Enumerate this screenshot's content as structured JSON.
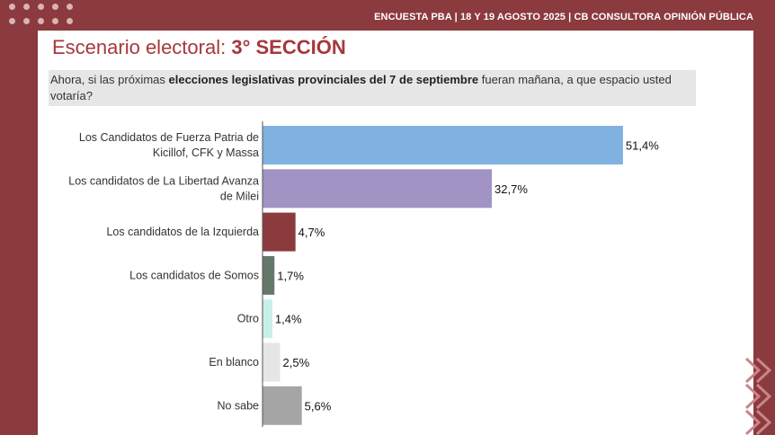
{
  "header": {
    "text": "ENCUESTA PBA | 18 Y 19  AGOSTO 2025 | CB CONSULTORA OPINIÓN PÚBLICA"
  },
  "title": {
    "prefix": "Escenario electoral: ",
    "highlight": "3° SECCIÓN"
  },
  "question": {
    "part1": "Ahora, si las próximas ",
    "bold": "elecciones legislativas provinciales del 7 de septiembre",
    "part2": " fueran mañana, a que espacio usted votaría?"
  },
  "chart_data": {
    "type": "bar",
    "orientation": "horizontal",
    "categories": [
      "Los Candidatos de Fuerza Patria de Kicillof, CFK y Massa",
      "Los candidatos de La Libertad Avanza de Milei",
      "Los candidatos de la Izquierda",
      "Los candidatos de Somos",
      "Otro",
      "En blanco",
      "No sabe"
    ],
    "category_lines": [
      [
        "Los Candidatos de Fuerza Patria de",
        "Kicillof, CFK y Massa"
      ],
      [
        "Los candidatos de La Libertad Avanza",
        "de Milei"
      ],
      [
        "Los candidatos de la Izquierda"
      ],
      [
        "Los candidatos de Somos"
      ],
      [
        "Otro"
      ],
      [
        "En blanco"
      ],
      [
        "No sabe"
      ]
    ],
    "values": [
      51.4,
      32.7,
      4.7,
      1.7,
      1.4,
      2.5,
      5.6
    ],
    "value_labels": [
      "51,4%",
      "32,7%",
      "4,7%",
      "1,7%",
      "1,4%",
      "2,5%",
      "5,6%"
    ],
    "colors": [
      "#7fb2e1",
      "#a193c4",
      "#8b3a3e",
      "#64786a",
      "#c8f0e6",
      "#e6e6e6",
      "#a5a5a5"
    ],
    "xlim": [
      0,
      100
    ],
    "title": "",
    "xlabel": "",
    "ylabel": ""
  }
}
